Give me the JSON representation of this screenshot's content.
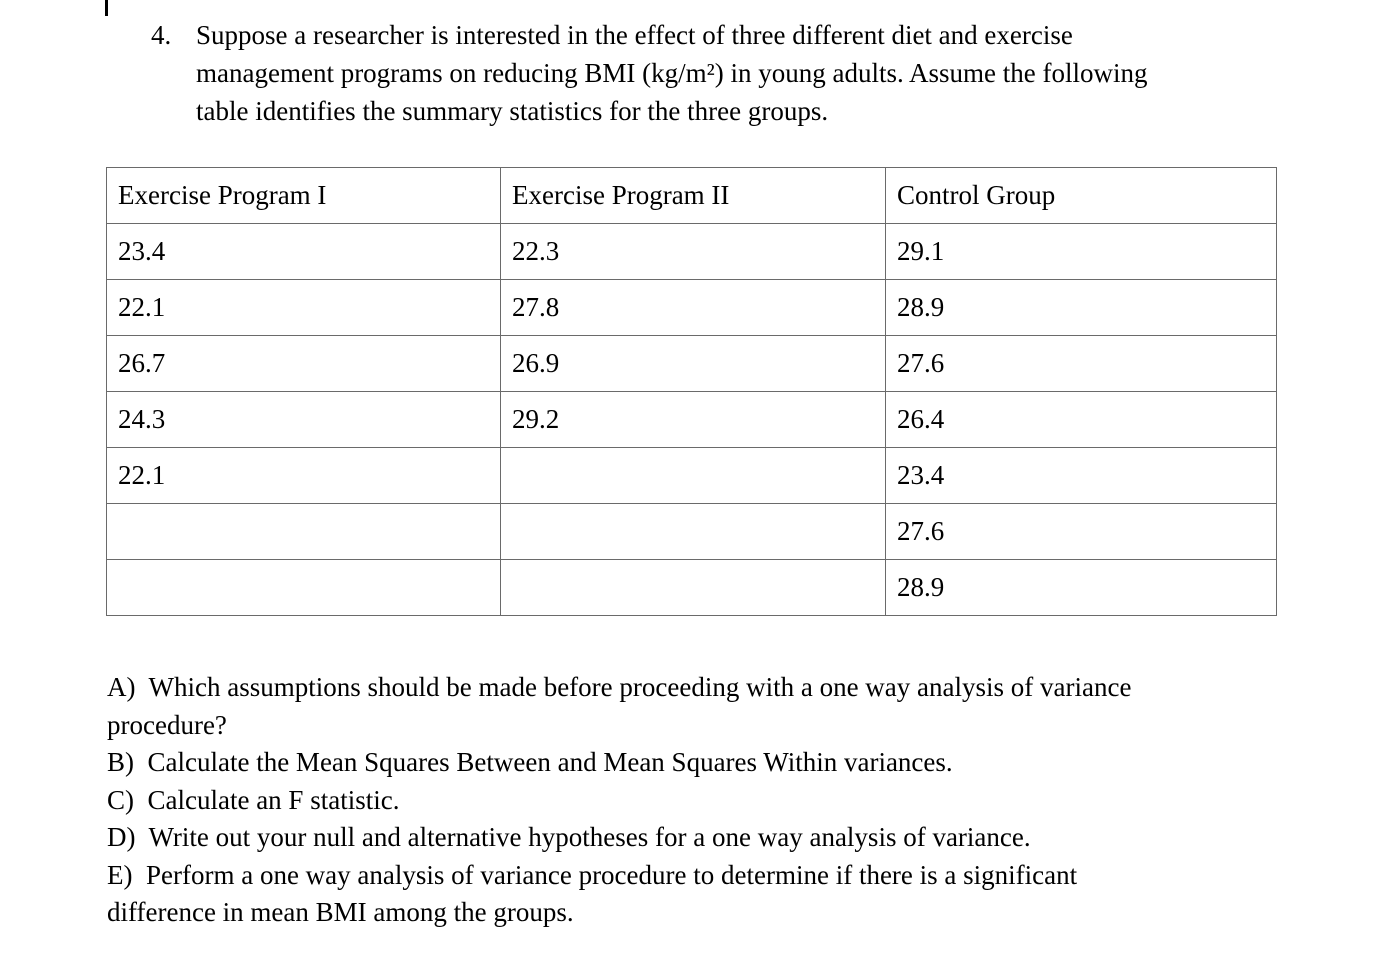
{
  "page": {
    "background_color": "#ffffff",
    "text_color": "#000000",
    "table_border_color": "#6a6a6a"
  },
  "intro": {
    "number": "4.",
    "lines": [
      "Suppose a researcher is interested in the effect of three different diet and exercise",
      "management programs on reducing BMI (kg/m²) in young adults. Assume the following",
      "table identifies the summary statistics for the three groups."
    ]
  },
  "table": {
    "headers": [
      "Exercise Program I",
      "Exercise Program II",
      "Control Group"
    ],
    "rows": [
      [
        "23.4",
        "22.3",
        "29.1"
      ],
      [
        "22.1",
        "27.8",
        "28.9"
      ],
      [
        "26.7",
        "26.9",
        "27.6"
      ],
      [
        "24.3",
        "29.2",
        "26.4"
      ],
      [
        "22.1",
        "",
        "23.4"
      ],
      [
        "",
        "",
        "27.6"
      ],
      [
        "",
        "",
        "28.9"
      ]
    ]
  },
  "parts": {
    "lines": [
      "A)  Which assumptions should be made before proceeding with a one way analysis of variance",
      "procedure?",
      "B)  Calculate the Mean Squares Between and Mean Squares Within variances.",
      "C)  Calculate an F statistic.",
      "D)  Write out your null and alternative hypotheses for a one way analysis of variance.",
      "E)  Perform a one way analysis of variance procedure to determine if there is a significant",
      "difference in mean BMI among the groups."
    ]
  }
}
